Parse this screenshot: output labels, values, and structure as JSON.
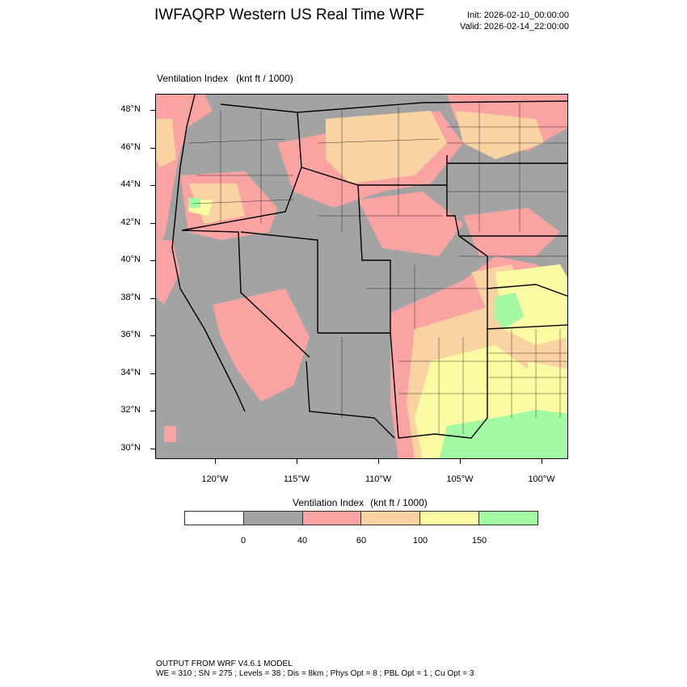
{
  "header": {
    "title": "IWFAQRP Western US Real Time WRF",
    "init": "Init: 2026-02-10_00:00:00",
    "valid": "Valid: 2026-02-14_22:00:00"
  },
  "field": {
    "name": "Ventilation Index",
    "units": "(knt ft / 1000)"
  },
  "axes": {
    "lat_labels": [
      "48°N",
      "46°N",
      "44°N",
      "42°N",
      "40°N",
      "38°N",
      "36°N",
      "34°N",
      "32°N",
      "30°N"
    ],
    "lon_labels": [
      "120°W",
      "115°W",
      "110°W",
      "105°W",
      "100°W"
    ]
  },
  "colorbar": {
    "title": "Ventilation Index",
    "units": "(knt ft / 1000)",
    "labels": [
      "0",
      "40",
      "60",
      "100",
      "150"
    ],
    "colors": [
      "#ffffff",
      "#a3a3a3",
      "#f9a3a3",
      "#fad3a3",
      "#fbfba3",
      "#a3faa3"
    ]
  },
  "footer": {
    "line1": "OUTPUT FROM WRF V4.6.1 MODEL",
    "line2": "WE = 310 ; SN = 275 ; Levels = 38 ; Dis = 8km ; Phys Opt = 8 ; PBL Opt = 1 ; Cu Opt = 3"
  }
}
